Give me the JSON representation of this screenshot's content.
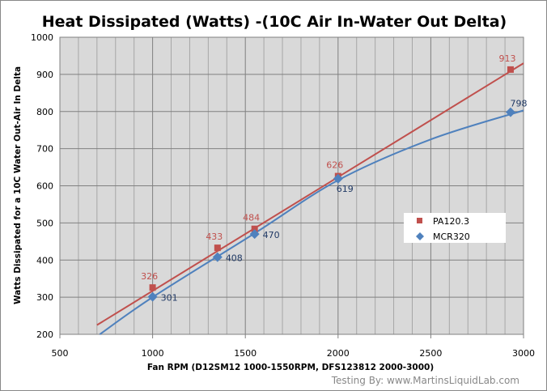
{
  "chart_data": {
    "type": "scatter",
    "title": "Heat Dissipated (Watts) -(10C Air In-Water Out Delta)",
    "xlabel": "Fan RPM (D12SM12 1000-1550RPM, DFS123812 2000-3000)",
    "ylabel": "Watts Dissipated  for a 10C Water Out-Air In Delta",
    "xlim": [
      500,
      3000
    ],
    "ylim": [
      200,
      1000
    ],
    "xticks": [
      500,
      1000,
      1500,
      2000,
      2500,
      3000
    ],
    "yticks": [
      200,
      300,
      400,
      500,
      600,
      700,
      800,
      900,
      1000
    ],
    "grid": true,
    "legend_position": "right",
    "series": [
      {
        "name": "PA120.3",
        "color": "#c0504d",
        "marker": "square",
        "x": [
          1000,
          1350,
          1550,
          2000,
          2930
        ],
        "y": [
          326,
          433,
          484,
          626,
          913
        ],
        "labels": [
          "326",
          "433",
          "484",
          "626",
          "913"
        ],
        "trendline": [
          [
            700,
            225
          ],
          [
            3000,
            930
          ]
        ]
      },
      {
        "name": "MCR320",
        "color": "#4f81bd",
        "marker": "diamond",
        "x": [
          1000,
          1350,
          1550,
          2000,
          2930
        ],
        "y": [
          301,
          408,
          470,
          619,
          798
        ],
        "labels": [
          "301",
          "408",
          "470",
          "619",
          "798"
        ],
        "trendline": [
          [
            715,
            200
          ],
          [
            1000,
            300
          ],
          [
            1550,
            472
          ],
          [
            2000,
            615
          ],
          [
            2500,
            725
          ],
          [
            3000,
            803
          ]
        ]
      }
    ]
  },
  "credit": "Testing By: www.MartinsLiquidLab.com"
}
